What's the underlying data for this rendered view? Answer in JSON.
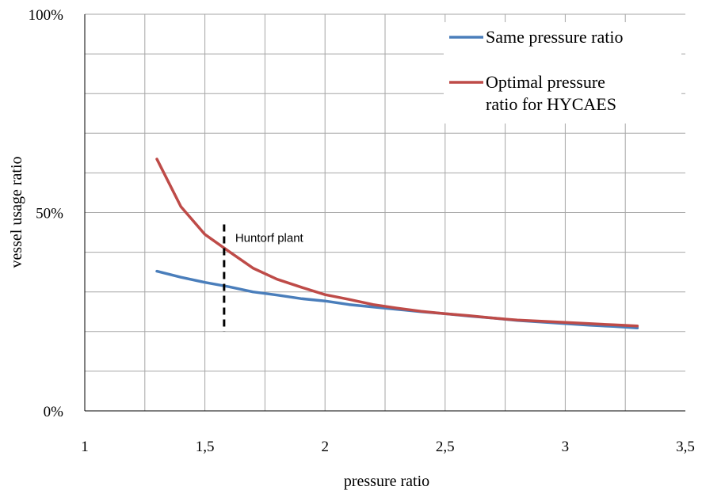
{
  "chart_data": {
    "type": "line",
    "title": "",
    "xlabel": "pressure ratio",
    "ylabel": "vessel usage ratio",
    "xlim": [
      1,
      3.5
    ],
    "ylim": [
      0,
      100
    ],
    "x_ticks": [
      "1",
      "1,5",
      "2",
      "2,5",
      "3",
      "3,5"
    ],
    "y_ticks": [
      "0%",
      "50%",
      "100%"
    ],
    "grid": true,
    "legend_position": "top-right",
    "series": [
      {
        "name": "Same pressure ratio",
        "color": "#4a7ebb",
        "x": [
          1.3,
          1.4,
          1.5,
          1.6,
          1.7,
          1.8,
          1.9,
          2.0,
          2.1,
          2.2,
          2.3,
          2.4,
          2.5,
          2.6,
          2.7,
          2.8,
          2.9,
          3.0,
          3.1,
          3.2,
          3.3
        ],
        "y": [
          35.2,
          33.7,
          32.4,
          31.3,
          30.0,
          29.2,
          28.3,
          27.7,
          26.8,
          26.2,
          25.6,
          25.0,
          24.5,
          23.9,
          23.4,
          22.8,
          22.4,
          22.0,
          21.6,
          21.3,
          20.9
        ]
      },
      {
        "name": "Optimal pressure ratio for HYCAES",
        "name_lines": [
          "Optimal pressure",
          "ratio for HYCAES"
        ],
        "color": "#be4b48",
        "x": [
          1.3,
          1.4,
          1.5,
          1.6,
          1.7,
          1.8,
          1.9,
          2.0,
          2.1,
          2.2,
          2.3,
          2.4,
          2.5,
          2.6,
          2.7,
          2.8,
          2.9,
          3.0,
          3.1,
          3.2,
          3.3
        ],
        "y": [
          63.5,
          51.5,
          44.5,
          40.2,
          36.0,
          33.2,
          31.2,
          29.3,
          28.1,
          26.8,
          25.9,
          25.1,
          24.5,
          24.0,
          23.4,
          22.9,
          22.6,
          22.3,
          22.0,
          21.7,
          21.4
        ]
      }
    ],
    "annotations": [
      {
        "text": "Huntorf plant",
        "x": 1.58,
        "y_range": [
          20,
          47
        ]
      }
    ]
  }
}
